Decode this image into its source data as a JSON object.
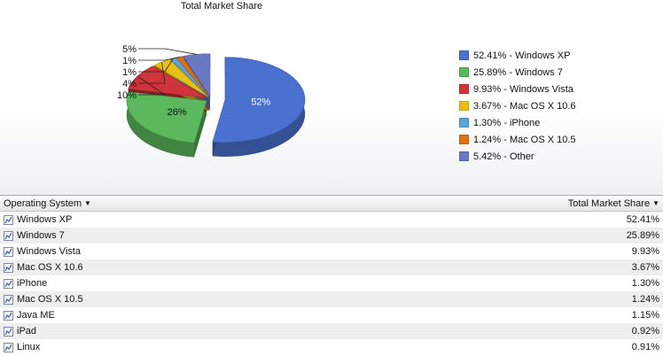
{
  "chart": {
    "title": "Total Market Share"
  },
  "chart_data": {
    "type": "pie",
    "title": "Total Market Share",
    "slices": [
      {
        "label": "Windows XP",
        "value": 52.41,
        "legend": "52.41% - Windows XP",
        "slice_label": "52%",
        "color": "#4a70d0"
      },
      {
        "label": "Windows 7",
        "value": 25.89,
        "legend": "25.89% - Windows 7",
        "slice_label": "26%",
        "color": "#5cb85c"
      },
      {
        "label": "Windows Vista",
        "value": 9.93,
        "legend": "9.93% - Windows Vista",
        "slice_label": "10%",
        "color": "#d0343a"
      },
      {
        "label": "Mac OS X 10.6",
        "value": 3.67,
        "legend": "3.67% - Mac OS X 10.6",
        "slice_label": "4%",
        "color": "#e8c014"
      },
      {
        "label": "iPhone",
        "value": 1.3,
        "legend": "1.30% - iPhone",
        "slice_label": "1%",
        "color": "#5aa6d6"
      },
      {
        "label": "Mac OS X 10.5",
        "value": 1.24,
        "legend": "1.24% - Mac OS X 10.5",
        "slice_label": "1%",
        "color": "#dd6f14"
      },
      {
        "label": "Other",
        "value": 5.42,
        "legend": "5.42% - Other",
        "slice_label": "5%",
        "color": "#6a78c4"
      }
    ],
    "legend_position": "right"
  },
  "table": {
    "col_os": "Operating System",
    "col_share": "Total Market Share",
    "rows": [
      {
        "name": "Windows XP",
        "share": "52.41%"
      },
      {
        "name": "Windows 7",
        "share": "25.89%"
      },
      {
        "name": "Windows Vista",
        "share": "9.93%"
      },
      {
        "name": "Mac OS X 10.6",
        "share": "3.67%"
      },
      {
        "name": "iPhone",
        "share": "1.30%"
      },
      {
        "name": "Mac OS X 10.5",
        "share": "1.24%"
      },
      {
        "name": "Java ME",
        "share": "1.15%"
      },
      {
        "name": "iPad",
        "share": "0.92%"
      },
      {
        "name": "Linux",
        "share": "0.91%"
      }
    ]
  }
}
